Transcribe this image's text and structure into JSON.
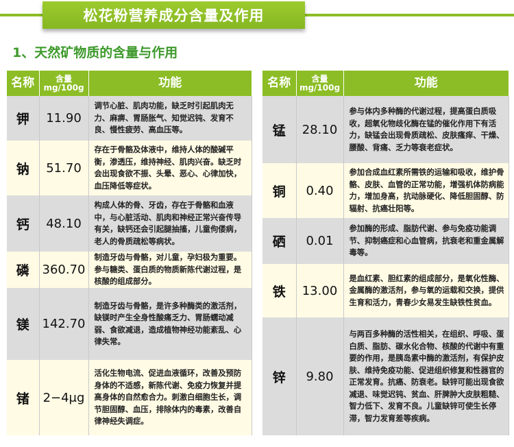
{
  "title": "松花粉营养成分含量及作用",
  "subtitle": "1、天然矿物质的含量与作用",
  "colors": {
    "accent": "#8cbd26",
    "subtitle": "#3e9a2c",
    "row_gray": "#dcdcdc",
    "row_cream": "#fffbe5"
  },
  "headers": {
    "name": "名称",
    "content_line1": "含量",
    "content_line2": "mg/100g",
    "function": "功能"
  },
  "left_rows": [
    {
      "name": "钾",
      "content": "11.90",
      "function": "调节心脏、肌肉功能，缺乏时引起肌肉无力、麻痹、胃肠胀气、知觉迟钝、发育不良、慢性疲劳、高血压等。"
    },
    {
      "name": "钠",
      "content": "51.70",
      "function": "存在于骨骼及体液中，维持人体的酸碱平衡，渗透压，维持神经、肌肉兴奋。缺乏时会出现食欲不振、头晕、恶心、心律加快，血压降低等症状。"
    },
    {
      "name": "钙",
      "content": "48.10",
      "function": "构成人体的骨、牙齿，存在于骨骼和血液中，与心脏活动、肌肉和神经正常兴奋传导有关，缺钙还会引起腿抽搐，儿童佝偻病，老人的骨质疏松等病状。"
    },
    {
      "name": "磷",
      "content": "360.70",
      "function": "制造牙齿与骨骼，对儿童，孕妇极为重要。参与糖类、蛋白质的物质新陈代谢过程，是核酸的组成部分。"
    },
    {
      "name": "镁",
      "content": "142.70",
      "function": "制造牙齿与骨骼，是许多种酶类的激活剂，缺镁时产生全身性酸痛乏力、胃肠蠕动减弱、食欲减退，造成植物神经功能紊乱、心律失常。"
    },
    {
      "name": "锗",
      "content": "2−4μg",
      "function": "活化生物电流、促进血液循环，改善及预防身体的不适感，新陈代谢、免疫力恢复并提高身体的自然愈合力。刺激白细胞生长，调节胆固醇、血压，排除体内的毒素，改善自律神经失调症。"
    }
  ],
  "right_rows": [
    {
      "name": "锰",
      "content": "28.10",
      "function": "参与体内多种酶的代谢过程，提高蛋白质吸收，超氧化物歧化酶在锰的催化作用下有活力，缺锰会出现骨质疏松、皮肤瘙痒、干燥、腰酸、背痛、乏力等衰老症状。"
    },
    {
      "name": "铜",
      "content": "0.40",
      "function": "参加合成血红素所需铁的运输和吸收，维护骨骼、皮肤、血管的正常功能，增强机体防病能力，增加身高，抗动脉硬化、降低胆固醇、防辐射、抗癌壮阳等。"
    },
    {
      "name": "硒",
      "content": "0.01",
      "function": "参加酶的形成、脂肪代谢、参与免疫功能调节、抑制癌症和心血管病，抗衰老和重金属解毒等。"
    },
    {
      "name": "铁",
      "content": "13.00",
      "function": "是血红素、胆红素的组成部分，是氧化性酶、金属酶的激活剂，参与氧的运载和交换，提供生育和活力，青春少女易发生缺铁性贫血。"
    },
    {
      "name": "锌",
      "content": "9.80",
      "function": "与两百多种酶的活性相关，在组织、呼吸、蛋白质、脂肪、碳水化合物、核酸的代谢中有重要的作用，是胰岛素中酶的激活剂，有保护皮肤、维持免疫功能、促进组织修复和性器官的正常发育。抗癌、防衰老。缺锌可能出现食欲减退、味觉迟钝、贫血、肝脾肿大皮肤粗糙、智力低下、发育不良。儿童缺锌可使生长停滞，智力发育差等疾病。"
    }
  ]
}
